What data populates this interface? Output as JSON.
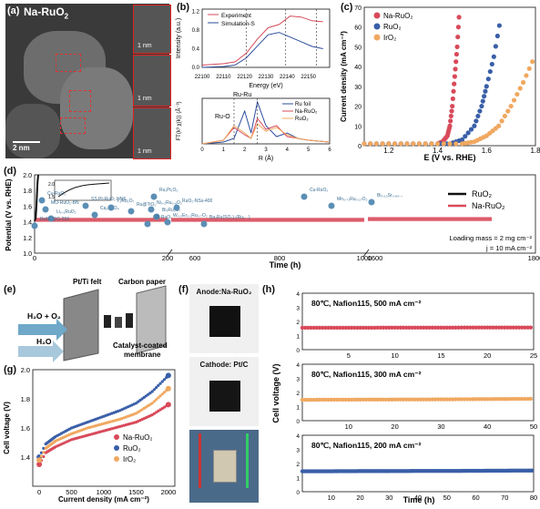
{
  "colors": {
    "na_ruo2": "#d84a5a",
    "ruo2": "#3a5fa8",
    "iro2": "#f0a860",
    "ru_foil": "#2e4e9e",
    "black": "#111111",
    "red_box": "#cc2222"
  },
  "panel_a": {
    "label": "(a)",
    "sample": "Na-RuO",
    "sample_sub": "2",
    "scalebar": "2 nm",
    "insets": [
      "1 nm",
      "1 nm",
      "1 nm"
    ]
  },
  "panel_b": {
    "label": "(b)",
    "top": {
      "legend": [
        "Experiment",
        "Simulation-S"
      ],
      "ylabel": "Intensity (a.u.)",
      "xlabel": "Energy (eV)",
      "xticks": [
        "22100",
        "22110",
        "22120",
        "22130",
        "22140",
        "22150"
      ],
      "yticks": [
        "0.0",
        "0.4",
        "0.8",
        "1.2"
      ]
    },
    "bottom": {
      "legend": [
        "Ru foil",
        "Na-RuO₂",
        "RuO₂"
      ],
      "ylabel": "FT(k³ χ(k)) (Å⁻³)",
      "xlabel": "R (Å)",
      "xticks": [
        "0",
        "1",
        "2",
        "3",
        "4",
        "5",
        "6"
      ],
      "annot": [
        "Ru-Ru",
        "Ru-O"
      ]
    }
  },
  "panel_c": {
    "label": "(c)",
    "legend": [
      "Na-RuO₂",
      "RuO₂",
      "IrO₂"
    ],
    "ylabel": "Current density (mA cm⁻²)",
    "xlabel": "E (V vs. RHE)",
    "xticks": [
      "1.2",
      "1.4",
      "1.6",
      "1.8"
    ],
    "yticks": [
      "0",
      "10",
      "20",
      "30",
      "40",
      "50",
      "60",
      "70"
    ]
  },
  "panel_d": {
    "label": "(d)",
    "ylabel": "Potential (V vs. RHE)",
    "xlabel": "Time (h)",
    "yticks": [
      "1.0",
      "1.2",
      "1.4",
      "1.6",
      "1.8",
      "2.0"
    ],
    "xticks": [
      "0",
      "200",
      "600",
      "800",
      "1000",
      "1600",
      "1800"
    ],
    "legend": [
      "RuO₂",
      "Na-RuO₂"
    ],
    "note1": "Loading mass = 2 mg cm⁻²",
    "note2": "j = 10 mA cm⁻²",
    "inset_ticks": [
      "2.0",
      "1.5"
    ],
    "refs": [
      "Cu-RuO₂",
      "MO-RuO₂-BN",
      "Li₀.₅RuO₂",
      "RuNi₂@G-250",
      "SS Pt-RuO₂ HNS",
      "Ca₂RuO₄",
      "Y₂Ru₂O₇",
      "Ru@TiO₂",
      "Ru₁Pt₁O₂",
      "Ni₀.₂Ru₀.₈O₂",
      "Bi₂Ru₂O₇",
      "GB-RuO₂",
      "RuO₂-NSs-400",
      "W₀.₂Er₀.₁Ru₀.₇O₂",
      "Ba₂Ru(SO₄)₂(Ru₁...)",
      "Cu-RuO₂",
      "Mn₀.₇₃Ru₀.₂₇O₂",
      "Bi₀.₁₅Sr₀.₈₅..."
    ]
  },
  "panel_e": {
    "label": "(e)",
    "t1": "Pt/Ti felt",
    "t2": "Carbon paper",
    "t3": "H₂O + O₂",
    "t4": "H₂O",
    "t5": "Catalyst-coated",
    "t6": "membrane"
  },
  "panel_f": {
    "label": "(f)",
    "anode": "Anode:Na-RuO₂",
    "cathode": "Cathode: Pt/C"
  },
  "panel_g": {
    "label": "(g)",
    "ylabel": "Cell voltage (V)",
    "xlabel": "Current density (mA cm⁻²)",
    "xticks": [
      "0",
      "500",
      "1000",
      "1500",
      "2000"
    ],
    "yticks": [
      "1.4",
      "1.6",
      "1.8",
      "2.0"
    ],
    "legend": [
      "Na-RuO₂",
      "RuO₂",
      "IrO₂"
    ]
  },
  "panel_h": {
    "label": "(h)",
    "ylabel": "Cell voltage (V)",
    "xlabel": "Time (h)",
    "rows": [
      {
        "title": "80℃, Nafion115, 500 mA cm⁻²",
        "xticks": [
          "5",
          "10",
          "15",
          "20",
          "25"
        ],
        "yticks": [
          "0",
          "1",
          "2",
          "3",
          "4"
        ]
      },
      {
        "title": "80℃, Nafion115, 300 mA cm⁻²",
        "xticks": [
          "10",
          "20",
          "30",
          "40",
          "50"
        ],
        "yticks": [
          "0",
          "1",
          "2",
          "3",
          "4"
        ]
      },
      {
        "title": "80℃, Nafion115, 200 mA cm⁻²",
        "xticks": [
          "10",
          "20",
          "30",
          "40",
          "50",
          "60",
          "70",
          "80"
        ],
        "yticks": [
          "0",
          "1",
          "2",
          "3",
          "4"
        ]
      }
    ]
  },
  "chart_data": [
    {
      "type": "line",
      "id": "b-top",
      "series": [
        {
          "name": "Experiment",
          "x": [
            22100,
            22110,
            22115,
            22120,
            22125,
            22130,
            22135,
            22140,
            22145,
            22150,
            22155
          ],
          "values": [
            0.05,
            0.08,
            0.12,
            0.3,
            0.6,
            0.85,
            0.92,
            1.1,
            1.08,
            1.0,
            0.98
          ]
        },
        {
          "name": "Simulation-S",
          "x": [
            22100,
            22110,
            22115,
            22120,
            22125,
            22130,
            22135,
            22140,
            22145,
            22150,
            22155
          ],
          "values": [
            0.0,
            0.02,
            0.05,
            0.2,
            0.45,
            0.7,
            0.75,
            0.65,
            0.55,
            0.45,
            0.4
          ]
        }
      ]
    },
    {
      "type": "line",
      "id": "b-bottom",
      "series": [
        {
          "name": "Ru foil",
          "x": [
            0,
            1,
            1.5,
            2,
            2.3,
            2.6,
            3.0,
            3.5,
            4,
            4.5,
            5,
            6
          ],
          "values": [
            0,
            0.1,
            0.3,
            1.8,
            0.6,
            2.3,
            1.0,
            0.4,
            0.6,
            0.3,
            0.2,
            0.1
          ]
        },
        {
          "name": "Na-RuO₂",
          "x": [
            0,
            1,
            1.5,
            2,
            2.3,
            2.6,
            3.0,
            3.5,
            4,
            4.5,
            5,
            6
          ],
          "values": [
            0,
            0.2,
            0.9,
            0.5,
            0.3,
            1.4,
            0.8,
            1.0,
            0.4,
            0.3,
            0.2,
            0.1
          ]
        },
        {
          "name": "RuO₂",
          "x": [
            0,
            1,
            1.5,
            2,
            2.3,
            2.6,
            3.0,
            3.5,
            4,
            4.5,
            5,
            6
          ],
          "values": [
            0,
            0.2,
            1.0,
            0.6,
            0.3,
            1.1,
            0.7,
            0.9,
            0.5,
            0.3,
            0.2,
            0.1
          ]
        }
      ]
    },
    {
      "type": "scatter",
      "id": "c",
      "xlim": [
        1.1,
        1.8
      ],
      "ylim": [
        0,
        70
      ],
      "series": [
        {
          "name": "Na-RuO₂",
          "x": [
            1.1,
            1.2,
            1.3,
            1.4,
            1.42,
            1.44,
            1.45,
            1.46,
            1.47,
            1.48,
            1.49
          ],
          "values": [
            1,
            1,
            1,
            1,
            2,
            5,
            10,
            20,
            35,
            50,
            70
          ]
        },
        {
          "name": "RuO₂",
          "x": [
            1.1,
            1.2,
            1.3,
            1.4,
            1.45,
            1.5,
            1.55,
            1.58,
            1.6,
            1.63,
            1.66
          ],
          "values": [
            1,
            1,
            1,
            1,
            1,
            3,
            10,
            20,
            30,
            45,
            66
          ]
        },
        {
          "name": "IrO₂",
          "x": [
            1.1,
            1.2,
            1.3,
            1.4,
            1.5,
            1.55,
            1.6,
            1.65,
            1.7,
            1.75,
            1.8
          ],
          "values": [
            1,
            1,
            1,
            1,
            1,
            2,
            5,
            10,
            20,
            32,
            46
          ]
        }
      ]
    },
    {
      "type": "line",
      "id": "d",
      "series": [
        {
          "name": "RuO₂",
          "x": [
            0,
            3,
            5,
            8,
            10
          ],
          "values": [
            1.41,
            1.45,
            1.6,
            1.9,
            2.0
          ]
        },
        {
          "name": "Na-RuO₂",
          "x": [
            0,
            200,
            600,
            1000,
            1600,
            1800
          ],
          "values": [
            1.42,
            1.42,
            1.42,
            1.43,
            1.43,
            1.43
          ]
        }
      ]
    },
    {
      "type": "scatter",
      "id": "g",
      "xlim": [
        0,
        2000
      ],
      "ylim": [
        1.2,
        2.0
      ],
      "series": [
        {
          "name": "Na-RuO₂",
          "x": [
            0,
            100,
            250,
            500,
            750,
            1000,
            1250,
            1500,
            1750,
            2000
          ],
          "values": [
            1.35,
            1.43,
            1.47,
            1.52,
            1.55,
            1.58,
            1.61,
            1.64,
            1.69,
            1.76
          ]
        },
        {
          "name": "RuO₂",
          "x": [
            0,
            100,
            250,
            500,
            750,
            1000,
            1250,
            1500,
            1750,
            2000
          ],
          "values": [
            1.4,
            1.49,
            1.54,
            1.6,
            1.64,
            1.68,
            1.72,
            1.77,
            1.85,
            1.96
          ]
        },
        {
          "name": "IrO₂",
          "x": [
            0,
            100,
            250,
            500,
            750,
            1000,
            1250,
            1500,
            1750,
            2000
          ],
          "values": [
            1.38,
            1.46,
            1.51,
            1.56,
            1.6,
            1.63,
            1.66,
            1.7,
            1.77,
            1.87
          ]
        }
      ]
    },
    {
      "type": "line",
      "id": "h1",
      "xlim": [
        0,
        25
      ],
      "ylim": [
        0,
        4
      ],
      "series": [
        {
          "name": "Na-RuO₂",
          "x": [
            0,
            5,
            10,
            15,
            20,
            25
          ],
          "values": [
            1.55,
            1.55,
            1.56,
            1.56,
            1.57,
            1.57
          ]
        }
      ]
    },
    {
      "type": "line",
      "id": "h2",
      "xlim": [
        0,
        50
      ],
      "ylim": [
        0,
        4
      ],
      "series": [
        {
          "name": "Na-RuO₂",
          "x": [
            0,
            10,
            20,
            30,
            40,
            50
          ],
          "values": [
            1.48,
            1.49,
            1.5,
            1.51,
            1.53,
            1.55
          ]
        }
      ]
    },
    {
      "type": "line",
      "id": "h3",
      "xlim": [
        0,
        80
      ],
      "ylim": [
        0,
        4
      ],
      "series": [
        {
          "name": "Na-RuO₂",
          "x": [
            0,
            10,
            20,
            30,
            40,
            50,
            60,
            70,
            80
          ],
          "values": [
            1.45,
            1.45,
            1.46,
            1.46,
            1.47,
            1.47,
            1.48,
            1.49,
            1.5
          ]
        }
      ]
    }
  ]
}
